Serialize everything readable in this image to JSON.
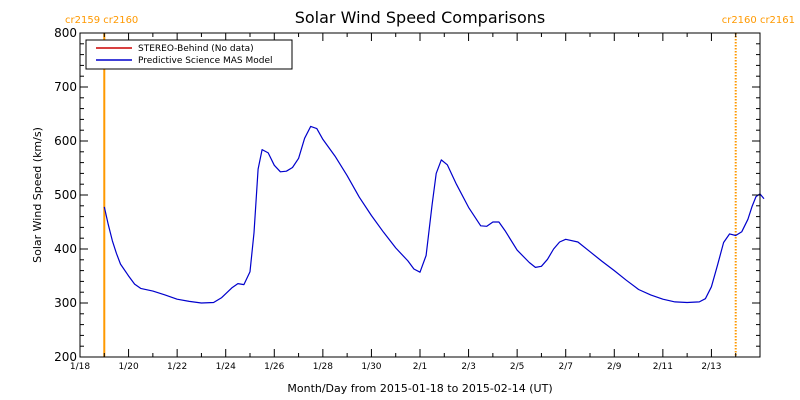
{
  "chart_data": {
    "type": "line",
    "title": "Solar Wind Speed Comparisons",
    "xlabel": "Month/Day from 2015-01-18 to 2015-02-14 (UT)",
    "ylabel": "Solar Wind Speed (km/s)",
    "xlim": [
      "2015-01-18",
      "2015-02-14"
    ],
    "ylim": [
      200,
      800
    ],
    "x_ticks": [
      {
        "date": "2015-01-18",
        "label": "1/18"
      },
      {
        "date": "2015-01-20",
        "label": "1/20"
      },
      {
        "date": "2015-01-22",
        "label": "1/22"
      },
      {
        "date": "2015-01-24",
        "label": "1/24"
      },
      {
        "date": "2015-01-26",
        "label": "1/26"
      },
      {
        "date": "2015-01-28",
        "label": "1/28"
      },
      {
        "date": "2015-01-30",
        "label": "1/30"
      },
      {
        "date": "2015-02-01",
        "label": "2/1"
      },
      {
        "date": "2015-02-03",
        "label": "2/3"
      },
      {
        "date": "2015-02-05",
        "label": "2/5"
      },
      {
        "date": "2015-02-07",
        "label": "2/7"
      },
      {
        "date": "2015-02-09",
        "label": "2/9"
      },
      {
        "date": "2015-02-11",
        "label": "2/11"
      },
      {
        "date": "2015-02-13",
        "label": "2/13"
      }
    ],
    "y_ticks": [
      200,
      300,
      400,
      500,
      600,
      700,
      800
    ],
    "grid": false,
    "legend": {
      "position": "top-left",
      "entries": [
        {
          "label": "STEREO-Behind (No data)",
          "color": "#cc0000"
        },
        {
          "label": "Predictive Science MAS Model",
          "color": "#0000cc"
        }
      ]
    },
    "carrington_markers": [
      {
        "date": "2015-01-19T00:00",
        "labels": [
          "cr2159",
          "cr2160"
        ],
        "color": "#ff9900",
        "style": "solid",
        "label_align": "start"
      },
      {
        "date": "2015-02-14T00:00",
        "labels": [
          "cr2160",
          "cr2161"
        ],
        "color": "#ff9900",
        "style": "dotted",
        "label_align": "end"
      }
    ],
    "series": [
      {
        "name": "Predictive Science MAS Model",
        "color": "#0000cc",
        "points": [
          [
            "2015-01-19T00:00",
            478
          ],
          [
            "2015-01-19T04:00",
            445
          ],
          [
            "2015-01-19T08:00",
            415
          ],
          [
            "2015-01-19T12:00",
            392
          ],
          [
            "2015-01-19T16:00",
            372
          ],
          [
            "2015-01-20T00:00",
            350
          ],
          [
            "2015-01-20T06:00",
            335
          ],
          [
            "2015-01-20T12:00",
            327
          ],
          [
            "2015-01-21T00:00",
            322
          ],
          [
            "2015-01-21T12:00",
            315
          ],
          [
            "2015-01-22T00:00",
            307
          ],
          [
            "2015-01-22T12:00",
            303
          ],
          [
            "2015-01-23T00:00",
            300
          ],
          [
            "2015-01-23T12:00",
            301
          ],
          [
            "2015-01-23T20:00",
            310
          ],
          [
            "2015-01-24T06:00",
            328
          ],
          [
            "2015-01-24T12:00",
            336
          ],
          [
            "2015-01-24T18:00",
            334
          ],
          [
            "2015-01-25T00:00",
            358
          ],
          [
            "2015-01-25T04:00",
            430
          ],
          [
            "2015-01-25T08:00",
            548
          ],
          [
            "2015-01-25T12:00",
            584
          ],
          [
            "2015-01-25T18:00",
            578
          ],
          [
            "2015-01-26T00:00",
            555
          ],
          [
            "2015-01-26T06:00",
            543
          ],
          [
            "2015-01-26T12:00",
            544
          ],
          [
            "2015-01-26T18:00",
            551
          ],
          [
            "2015-01-27T00:00",
            568
          ],
          [
            "2015-01-27T06:00",
            605
          ],
          [
            "2015-01-27T12:00",
            627
          ],
          [
            "2015-01-27T18:00",
            623
          ],
          [
            "2015-01-28T00:00",
            603
          ],
          [
            "2015-01-28T12:00",
            572
          ],
          [
            "2015-01-29T00:00",
            536
          ],
          [
            "2015-01-29T12:00",
            496
          ],
          [
            "2015-01-30T00:00",
            462
          ],
          [
            "2015-01-30T12:00",
            431
          ],
          [
            "2015-01-31T00:00",
            402
          ],
          [
            "2015-01-31T12:00",
            378
          ],
          [
            "2015-01-31T18:00",
            363
          ],
          [
            "2015-02-01T00:00",
            357
          ],
          [
            "2015-02-01T06:00",
            388
          ],
          [
            "2015-02-01T12:00",
            482
          ],
          [
            "2015-02-01T16:00",
            540
          ],
          [
            "2015-02-01T21:00",
            565
          ],
          [
            "2015-02-02T03:00",
            556
          ],
          [
            "2015-02-02T12:00",
            520
          ],
          [
            "2015-02-03T00:00",
            477
          ],
          [
            "2015-02-03T12:00",
            443
          ],
          [
            "2015-02-03T18:00",
            442
          ],
          [
            "2015-02-04T00:00",
            450
          ],
          [
            "2015-02-04T06:00",
            450
          ],
          [
            "2015-02-04T12:00",
            434
          ],
          [
            "2015-02-05T00:00",
            398
          ],
          [
            "2015-02-05T12:00",
            375
          ],
          [
            "2015-02-05T18:00",
            366
          ],
          [
            "2015-02-06T00:00",
            368
          ],
          [
            "2015-02-06T06:00",
            381
          ],
          [
            "2015-02-06T12:00",
            400
          ],
          [
            "2015-02-06T18:00",
            413
          ],
          [
            "2015-02-07T00:00",
            418
          ],
          [
            "2015-02-07T12:00",
            413
          ],
          [
            "2015-02-08T00:00",
            395
          ],
          [
            "2015-02-08T12:00",
            377
          ],
          [
            "2015-02-09T00:00",
            360
          ],
          [
            "2015-02-09T12:00",
            342
          ],
          [
            "2015-02-10T00:00",
            325
          ],
          [
            "2015-02-10T12:00",
            315
          ],
          [
            "2015-02-11T00:00",
            307
          ],
          [
            "2015-02-11T12:00",
            302
          ],
          [
            "2015-02-12T00:00",
            301
          ],
          [
            "2015-02-12T12:00",
            302
          ],
          [
            "2015-02-12T18:00",
            308
          ],
          [
            "2015-02-13T00:00",
            330
          ],
          [
            "2015-02-13T06:00",
            370
          ],
          [
            "2015-02-13T12:00",
            412
          ],
          [
            "2015-02-13T18:00",
            428
          ],
          [
            "2015-02-14T00:00",
            425
          ],
          [
            "2015-02-14T06:00",
            432
          ],
          [
            "2015-02-14T12:00",
            455
          ],
          [
            "2015-02-14T16:00",
            478
          ],
          [
            "2015-02-14T20:00",
            497
          ],
          [
            "2015-02-15T00:00",
            502
          ],
          [
            "2015-02-15T04:00",
            493
          ]
        ]
      }
    ]
  }
}
